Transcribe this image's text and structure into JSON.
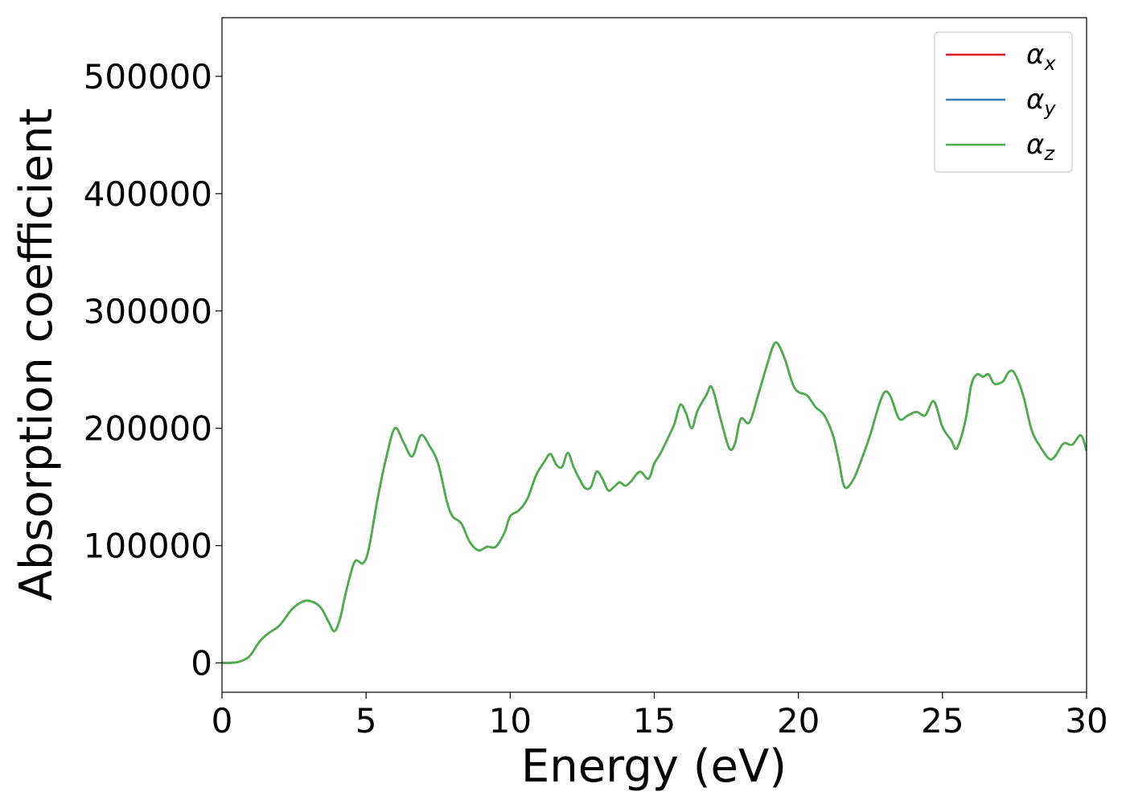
{
  "chart_data": {
    "type": "line",
    "title": "",
    "xlabel": "Energy (eV)",
    "ylabel": "Absorption coefficient",
    "xlim": [
      0,
      30
    ],
    "ylim": [
      -25000,
      550000
    ],
    "xticks": [
      0,
      5,
      10,
      15,
      20,
      25,
      30
    ],
    "xtick_labels": [
      "0",
      "5",
      "10",
      "15",
      "20",
      "25",
      "30"
    ],
    "yticks": [
      0,
      100000,
      200000,
      300000,
      400000,
      500000
    ],
    "ytick_labels": [
      "0",
      "100000",
      "200000",
      "300000",
      "400000",
      "500000"
    ],
    "grid": false,
    "legend_position": "top-right",
    "x": [
      0,
      0.5,
      0.8,
      1.0,
      1.3,
      1.6,
      2.0,
      2.4,
      2.7,
      3.0,
      3.4,
      3.7,
      3.9,
      4.1,
      4.3,
      4.6,
      4.9,
      5.1,
      5.4,
      5.7,
      6.0,
      6.3,
      6.6,
      6.9,
      7.2,
      7.5,
      7.8,
      8.0,
      8.3,
      8.6,
      8.9,
      9.2,
      9.5,
      9.8,
      10.0,
      10.3,
      10.6,
      10.9,
      11.2,
      11.4,
      11.6,
      11.8,
      12.0,
      12.2,
      12.4,
      12.6,
      12.8,
      13.0,
      13.2,
      13.4,
      13.6,
      13.8,
      14.0,
      14.2,
      14.5,
      14.8,
      15.0,
      15.2,
      15.5,
      15.7,
      15.9,
      16.1,
      16.3,
      16.5,
      16.8,
      17.0,
      17.3,
      17.6,
      17.8,
      18.0,
      18.3,
      18.6,
      18.9,
      19.2,
      19.5,
      19.8,
      20.0,
      20.3,
      20.6,
      20.9,
      21.2,
      21.4,
      21.6,
      21.9,
      22.2,
      22.5,
      22.8,
      23.0,
      23.2,
      23.5,
      23.8,
      24.1,
      24.4,
      24.7,
      25.0,
      25.3,
      25.5,
      25.8,
      26.0,
      26.2,
      26.4,
      26.6,
      26.8,
      27.1,
      27.3,
      27.5,
      27.8,
      28.1,
      28.4,
      28.7,
      28.9,
      29.2,
      29.5,
      29.8,
      30.0
    ],
    "series": [
      {
        "name": "α_x",
        "color": "#e41a1c",
        "values": [
          0,
          500,
          3000,
          7000,
          18000,
          25000,
          32000,
          45000,
          51000,
          53000,
          48000,
          35000,
          27000,
          38000,
          60000,
          86000,
          85000,
          98000,
          140000,
          175000,
          200000,
          188000,
          176000,
          194000,
          185000,
          170000,
          138000,
          125000,
          119000,
          103000,
          96000,
          99000,
          99000,
          111000,
          125000,
          130000,
          140000,
          160000,
          172000,
          178000,
          169000,
          167000,
          179000,
          167000,
          157000,
          149000,
          150000,
          163000,
          157000,
          147000,
          150000,
          154000,
          151000,
          155000,
          163000,
          157000,
          170000,
          178000,
          193000,
          204000,
          220000,
          213000,
          200000,
          215000,
          228000,
          235000,
          208000,
          183000,
          187000,
          208000,
          205000,
          228000,
          253000,
          273000,
          261000,
          238000,
          231000,
          228000,
          218000,
          211000,
          194000,
          173000,
          150000,
          156000,
          174000,
          195000,
          220000,
          231000,
          227000,
          208000,
          211000,
          214000,
          211000,
          223000,
          201000,
          190000,
          183000,
          207000,
          237000,
          246000,
          244000,
          246000,
          238000,
          240000,
          248000,
          247000,
          228000,
          198000,
          184000,
          174000,
          176000,
          187000,
          186000,
          194000,
          181000
        ]
      },
      {
        "name": "α_y",
        "color": "#377eb8",
        "values": [
          0,
          500,
          3000,
          7000,
          18000,
          25000,
          32000,
          45000,
          51000,
          53000,
          48000,
          35000,
          27000,
          38000,
          60000,
          86000,
          85000,
          98000,
          140000,
          175000,
          200000,
          188000,
          176000,
          194000,
          185000,
          170000,
          138000,
          125000,
          119000,
          103000,
          96000,
          99000,
          99000,
          111000,
          125000,
          130000,
          140000,
          160000,
          172000,
          178000,
          169000,
          167000,
          179000,
          167000,
          157000,
          149000,
          150000,
          163000,
          157000,
          147000,
          150000,
          154000,
          151000,
          155000,
          163000,
          157000,
          170000,
          178000,
          193000,
          204000,
          220000,
          213000,
          200000,
          215000,
          228000,
          235000,
          208000,
          183000,
          187000,
          208000,
          205000,
          228000,
          253000,
          273000,
          261000,
          238000,
          231000,
          228000,
          218000,
          211000,
          194000,
          173000,
          150000,
          156000,
          174000,
          195000,
          220000,
          231000,
          227000,
          208000,
          211000,
          214000,
          211000,
          223000,
          201000,
          190000,
          183000,
          207000,
          237000,
          246000,
          244000,
          246000,
          238000,
          240000,
          248000,
          247000,
          228000,
          198000,
          184000,
          174000,
          176000,
          187000,
          186000,
          194000,
          181000
        ]
      },
      {
        "name": "α_z",
        "color": "#4daf4a",
        "values": [
          0,
          500,
          3000,
          7000,
          18000,
          25000,
          32000,
          45000,
          51000,
          53000,
          48000,
          35000,
          27000,
          38000,
          60000,
          86000,
          85000,
          98000,
          140000,
          175000,
          200000,
          188000,
          176000,
          194000,
          185000,
          170000,
          138000,
          125000,
          119000,
          103000,
          96000,
          99000,
          99000,
          111000,
          125000,
          130000,
          140000,
          160000,
          172000,
          178000,
          169000,
          167000,
          179000,
          167000,
          157000,
          149000,
          150000,
          163000,
          157000,
          147000,
          150000,
          154000,
          151000,
          155000,
          163000,
          157000,
          170000,
          178000,
          193000,
          204000,
          220000,
          213000,
          200000,
          215000,
          228000,
          235000,
          208000,
          183000,
          187000,
          208000,
          205000,
          228000,
          253000,
          273000,
          261000,
          238000,
          231000,
          228000,
          218000,
          211000,
          194000,
          173000,
          150000,
          156000,
          174000,
          195000,
          220000,
          231000,
          227000,
          208000,
          211000,
          214000,
          211000,
          223000,
          201000,
          190000,
          183000,
          207000,
          237000,
          246000,
          244000,
          246000,
          238000,
          240000,
          248000,
          247000,
          228000,
          198000,
          184000,
          174000,
          176000,
          187000,
          186000,
          194000,
          181000
        ]
      }
    ]
  }
}
